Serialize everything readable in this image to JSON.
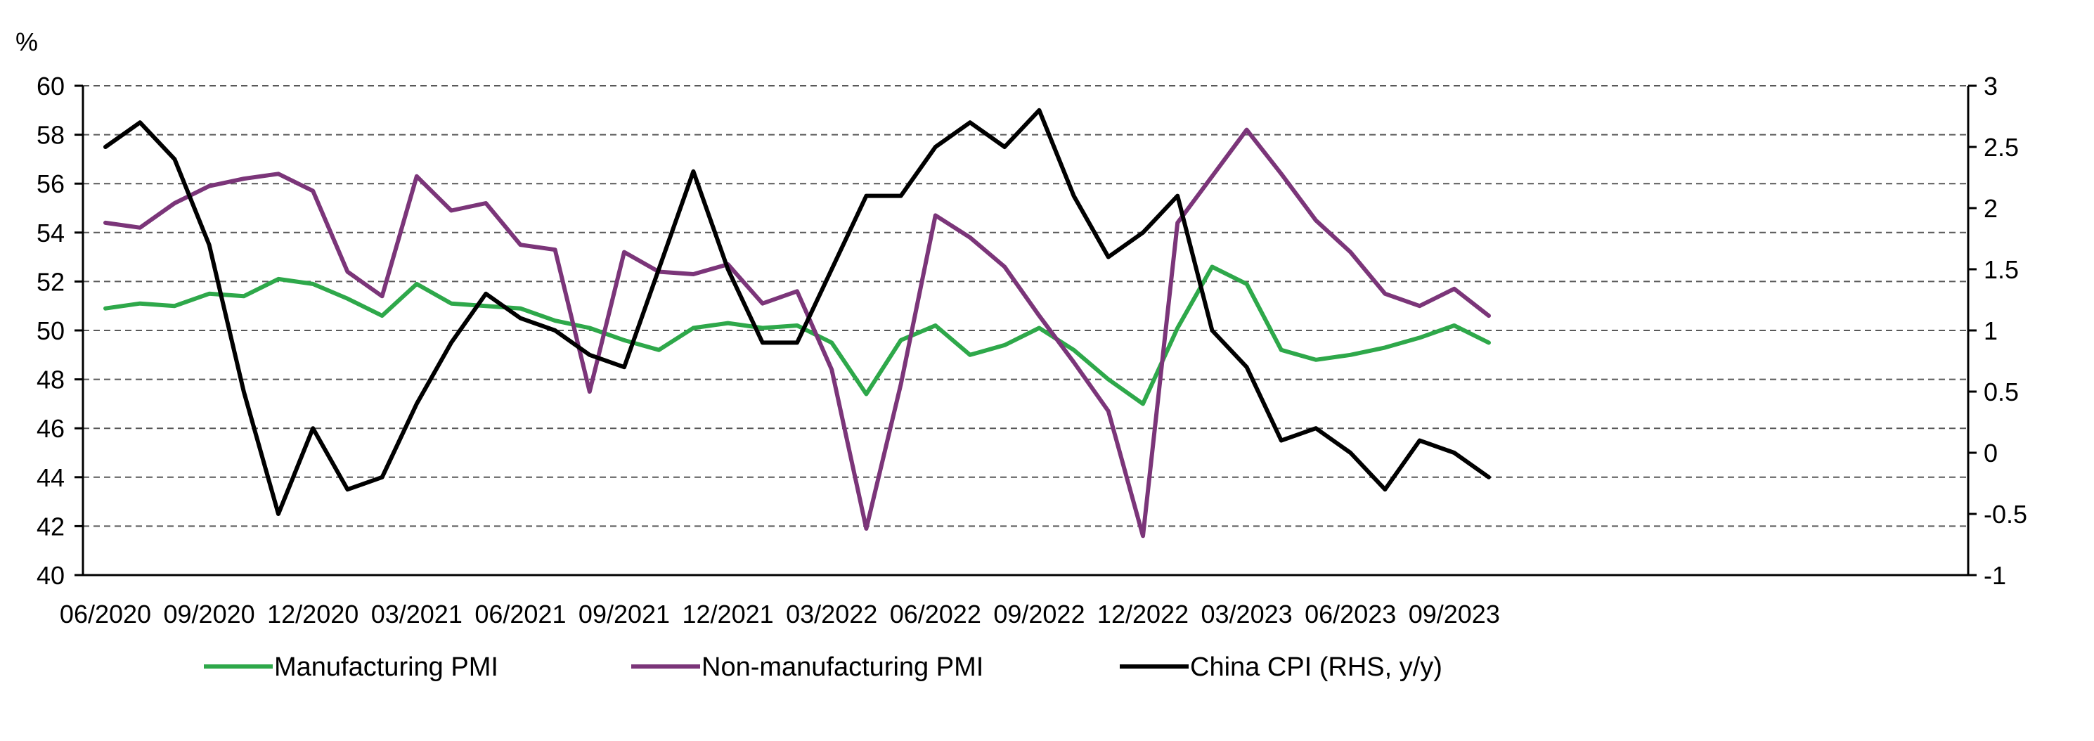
{
  "chart_data": {
    "type": "line",
    "y_unit_label": "%",
    "x": [
      "06/2020",
      "07/2020",
      "08/2020",
      "09/2020",
      "10/2020",
      "11/2020",
      "12/2020",
      "01/2021",
      "02/2021",
      "03/2021",
      "04/2021",
      "05/2021",
      "06/2021",
      "07/2021",
      "08/2021",
      "09/2021",
      "10/2021",
      "11/2021",
      "12/2021",
      "01/2022",
      "02/2022",
      "03/2022",
      "04/2022",
      "05/2022",
      "06/2022",
      "07/2022",
      "08/2022",
      "09/2022",
      "10/2022",
      "11/2022",
      "12/2022",
      "01/2023",
      "02/2023",
      "03/2023",
      "04/2023",
      "05/2023",
      "06/2023",
      "07/2023",
      "08/2023",
      "09/2023",
      "10/2023"
    ],
    "x_tick_labels": [
      "06/2020",
      "09/2020",
      "12/2020",
      "03/2021",
      "06/2021",
      "09/2021",
      "12/2021",
      "03/2022",
      "06/2022",
      "09/2022",
      "12/2022",
      "03/2023",
      "06/2023",
      "09/2023"
    ],
    "y_left": {
      "min": 40,
      "max": 60,
      "ticks": [
        "40",
        "42",
        "44",
        "46",
        "48",
        "50",
        "52",
        "54",
        "56",
        "58",
        "60"
      ]
    },
    "y_right": {
      "min": -1,
      "max": 3,
      "ticks": [
        "-1",
        "-0.5",
        "0",
        "0.5",
        "1",
        "1.5",
        "2",
        "2.5",
        "3"
      ]
    },
    "grid": true,
    "legend_position": "bottom",
    "series": [
      {
        "name": "Manufacturing PMI",
        "axis": "left",
        "color": "#2ea84a",
        "values": [
          50.9,
          51.1,
          51.0,
          51.5,
          51.4,
          52.1,
          51.9,
          51.3,
          50.6,
          51.9,
          51.1,
          51.0,
          50.9,
          50.4,
          50.1,
          49.6,
          49.2,
          50.1,
          50.3,
          50.1,
          50.2,
          49.5,
          47.4,
          49.6,
          50.2,
          49.0,
          49.4,
          50.1,
          49.2,
          48.0,
          47.0,
          50.1,
          52.6,
          51.9,
          49.2,
          48.8,
          49.0,
          49.3,
          49.7,
          50.2,
          49.5
        ]
      },
      {
        "name": "Non-manufacturing PMI",
        "axis": "left",
        "color": "#7b3579",
        "values": [
          54.4,
          54.2,
          55.2,
          55.9,
          56.2,
          56.4,
          55.7,
          52.4,
          51.4,
          56.3,
          54.9,
          55.2,
          53.5,
          53.3,
          47.5,
          53.2,
          52.4,
          52.3,
          52.7,
          51.1,
          51.6,
          48.4,
          41.9,
          47.8,
          54.7,
          53.8,
          52.6,
          50.6,
          48.7,
          46.7,
          41.6,
          54.4,
          56.3,
          58.2,
          56.4,
          54.5,
          53.2,
          51.5,
          51.0,
          51.7,
          50.6
        ]
      },
      {
        "name": "China CPI (RHS, y/y)",
        "axis": "right",
        "color": "#000000",
        "values": [
          2.5,
          2.7,
          2.4,
          1.7,
          0.5,
          -0.5,
          0.2,
          -0.3,
          -0.2,
          0.4,
          0.9,
          1.3,
          1.1,
          1.0,
          0.8,
          0.7,
          1.5,
          2.3,
          1.5,
          0.9,
          0.9,
          1.5,
          2.1,
          2.1,
          2.5,
          2.7,
          2.5,
          2.8,
          2.1,
          1.6,
          1.8,
          2.1,
          1.0,
          0.7,
          0.1,
          0.2,
          0.0,
          -0.3,
          0.1,
          0.0,
          -0.2
        ]
      }
    ]
  }
}
